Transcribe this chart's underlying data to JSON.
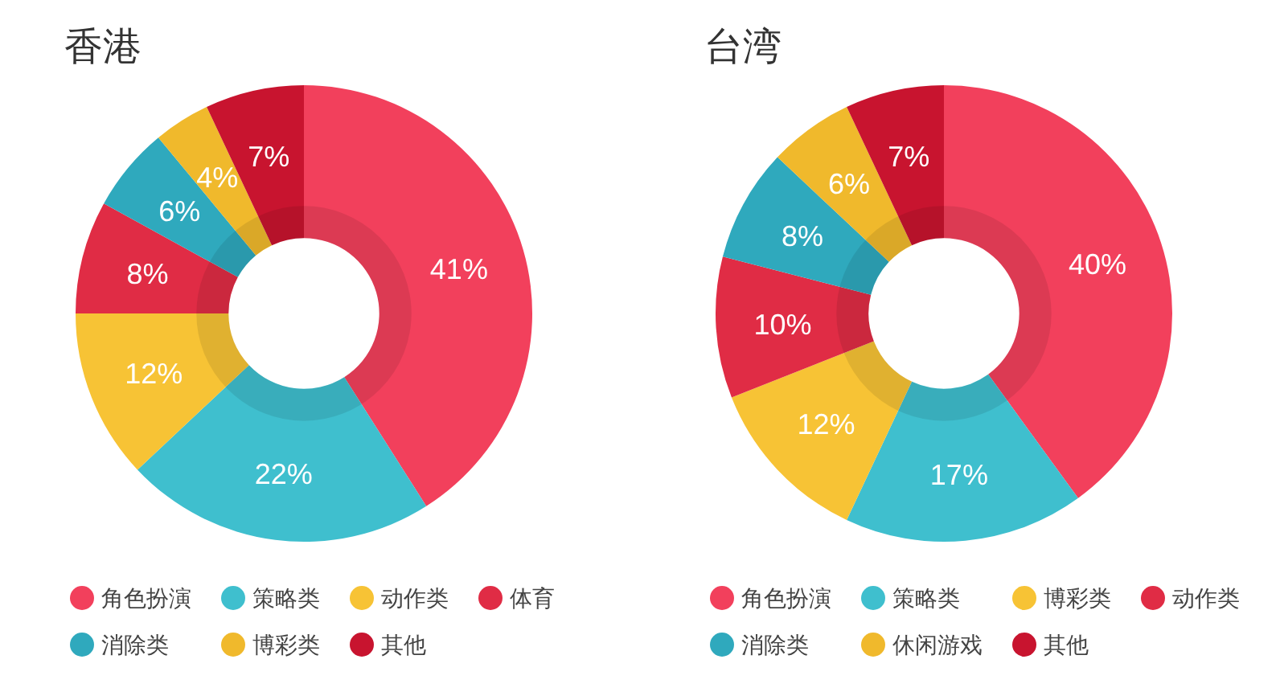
{
  "chart_data": [
    {
      "type": "donut",
      "title": "香港",
      "categories": [
        "角色扮演",
        "策略类",
        "动作类",
        "体育",
        "消除类",
        "博彩类",
        "其他"
      ],
      "values": [
        41,
        22,
        12,
        8,
        6,
        4,
        7
      ],
      "value_labels": [
        "41%",
        "22%",
        "12%",
        "8%",
        "6%",
        "4%",
        "7%"
      ],
      "colors": [
        "#f2405c",
        "#3fbfce",
        "#f7c335",
        "#e02c45",
        "#2fa9bd",
        "#f0b92c",
        "#c8142f"
      ],
      "legend": "bottom"
    },
    {
      "type": "donut",
      "title": "台湾",
      "categories": [
        "角色扮演",
        "策略类",
        "博彩类",
        "动作类",
        "消除类",
        "休闲游戏",
        "其他"
      ],
      "values": [
        40,
        17,
        12,
        10,
        8,
        6,
        7
      ],
      "value_labels": [
        "40%",
        "17%",
        "12%",
        "10%",
        "8%",
        "6%",
        "7%"
      ],
      "colors": [
        "#f2405c",
        "#3fbfce",
        "#f7c335",
        "#e02c45",
        "#2fa9bd",
        "#f0b92c",
        "#c8142f"
      ],
      "legend": "bottom"
    }
  ]
}
